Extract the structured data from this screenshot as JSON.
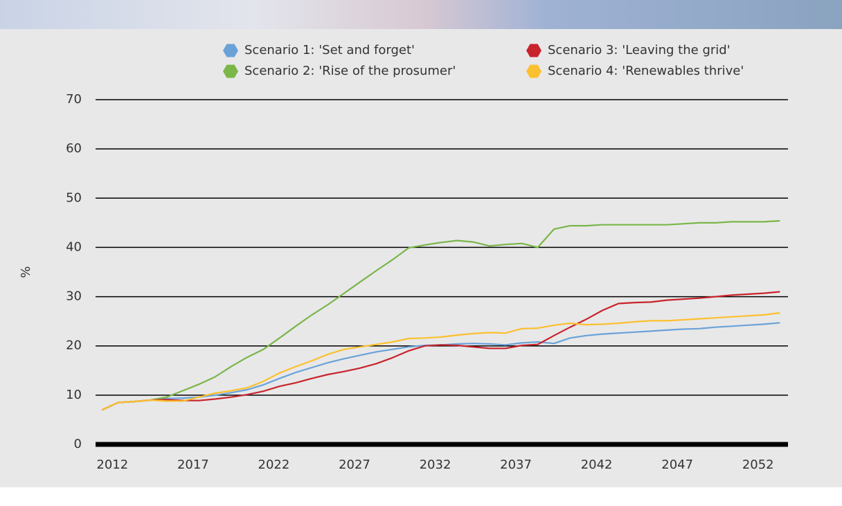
{
  "chart_data": {
    "type": "line",
    "y_label": "%",
    "x": [
      2012,
      2013,
      2014,
      2015,
      2016,
      2017,
      2018,
      2019,
      2020,
      2021,
      2022,
      2023,
      2024,
      2025,
      2026,
      2027,
      2028,
      2029,
      2030,
      2031,
      2032,
      2033,
      2034,
      2035,
      2036,
      2037,
      2038,
      2039,
      2040,
      2041,
      2042,
      2043,
      2044,
      2045,
      2046,
      2047,
      2048,
      2049,
      2050,
      2051,
      2052,
      2053,
      2054
    ],
    "series": [
      {
        "name": "Scenario 1: 'Set and forget'",
        "color": "#6aa2d8",
        "values": [
          7,
          8.5,
          8.7,
          9.0,
          9.3,
          9.4,
          9.6,
          10.0,
          10.5,
          11.1,
          12.1,
          13.4,
          14.6,
          15.6,
          16.6,
          17.4,
          18.1,
          18.8,
          19.3,
          19.8,
          20.1,
          20.2,
          20.4,
          20.5,
          20.4,
          20.2,
          20.6,
          20.8,
          20.5,
          21.6,
          22.1,
          22.4,
          22.6,
          22.8,
          23.0,
          23.2,
          23.4,
          23.5,
          23.8,
          24.0,
          24.2,
          24.4,
          24.7
        ]
      },
      {
        "name": "Scenario 2: 'Rise of the prosumer'",
        "color": "#7ab648",
        "values": [
          7,
          8.5,
          8.7,
          9.0,
          9.6,
          10.9,
          12.2,
          13.7,
          15.8,
          17.7,
          19.3,
          21.6,
          24.0,
          26.3,
          28.4,
          30.7,
          33.0,
          35.3,
          37.5,
          39.9,
          40.5,
          41.0,
          41.4,
          41.1,
          40.3,
          40.6,
          40.8,
          40.0,
          43.7,
          44.4,
          44.4,
          44.6,
          44.6,
          44.6,
          44.6,
          44.6,
          44.8,
          45.0,
          45.0,
          45.2,
          45.2,
          45.2,
          45.4
        ]
      },
      {
        "name": "Scenario 3: 'Leaving the grid'",
        "color": "#c8242b",
        "values": [
          7,
          8.5,
          8.7,
          9.0,
          9.1,
          8.9,
          8.9,
          9.2,
          9.6,
          10.1,
          10.8,
          11.8,
          12.5,
          13.4,
          14.2,
          14.8,
          15.5,
          16.4,
          17.6,
          19.0,
          20.0,
          20.2,
          20.1,
          19.8,
          19.5,
          19.5,
          20.1,
          20.3,
          22.1,
          23.8,
          25.4,
          27.2,
          28.6,
          28.8,
          28.9,
          29.3,
          29.5,
          29.7,
          30.0,
          30.3,
          30.5,
          30.7,
          31.0
        ]
      },
      {
        "name": "Scenario 4: 'Renewables thrive'",
        "color": "#fbc02d",
        "values": [
          7,
          8.5,
          8.7,
          9.0,
          8.8,
          8.8,
          9.6,
          10.4,
          10.9,
          11.5,
          12.8,
          14.5,
          15.8,
          17.0,
          18.3,
          19.3,
          19.8,
          20.3,
          20.8,
          21.5,
          21.6,
          21.8,
          22.2,
          22.5,
          22.7,
          22.6,
          23.5,
          23.6,
          24.2,
          24.6,
          24.3,
          24.4,
          24.6,
          24.9,
          25.1,
          25.1,
          25.3,
          25.5,
          25.7,
          25.9,
          26.1,
          26.3,
          26.7
        ]
      }
    ],
    "xlim": [
      2011.6,
      2054.5
    ],
    "xticks": [
      2012,
      2017,
      2022,
      2027,
      2032,
      2037,
      2042,
      2047,
      2052
    ],
    "ylim": [
      0,
      70
    ],
    "yticks": [
      0,
      10,
      20,
      30,
      40,
      50,
      60,
      70
    ],
    "grid": true,
    "legend_position": "top"
  }
}
